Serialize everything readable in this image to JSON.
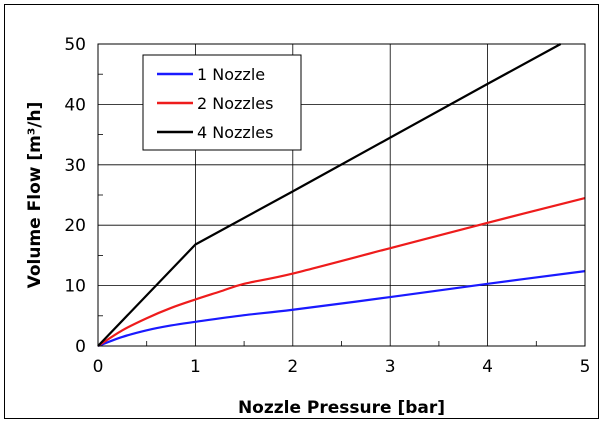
{
  "chart_data": {
    "type": "line",
    "title": "",
    "xlabel": "Nozzle Pressure [bar]",
    "ylabel": "Volume Flow [m³/h]",
    "xlim": [
      0,
      5
    ],
    "ylim": [
      0,
      50
    ],
    "xticks": [
      "0",
      "1",
      "2",
      "3",
      "4",
      "5"
    ],
    "yticks": [
      "0",
      "10",
      "20",
      "30",
      "40",
      "50"
    ],
    "grid": true,
    "legend_position": "top-left",
    "series": [
      {
        "name": "1 Nozzle",
        "color": "#1a1aff",
        "x": [
          0,
          0.25,
          0.5,
          0.75,
          1,
          1.5,
          2,
          3,
          4,
          5
        ],
        "y": [
          0,
          1.5,
          2.6,
          3.4,
          4.0,
          5.1,
          6.0,
          8.1,
          10.3,
          12.4
        ]
      },
      {
        "name": "2 Nozzles",
        "color": "#ee1c1c",
        "x": [
          0,
          0.25,
          0.5,
          0.75,
          1,
          1.25,
          1.5,
          2,
          3,
          4,
          5
        ],
        "y": [
          0,
          2.6,
          4.6,
          6.3,
          7.7,
          9.0,
          10.3,
          12.0,
          16.2,
          20.4,
          24.5
        ]
      },
      {
        "name": "4 Nozzles",
        "color": "#000000",
        "x": [
          0,
          1,
          2,
          3,
          4,
          4.75
        ],
        "y": [
          0,
          16.8,
          25.6,
          34.5,
          43.4,
          50.0
        ]
      }
    ]
  }
}
